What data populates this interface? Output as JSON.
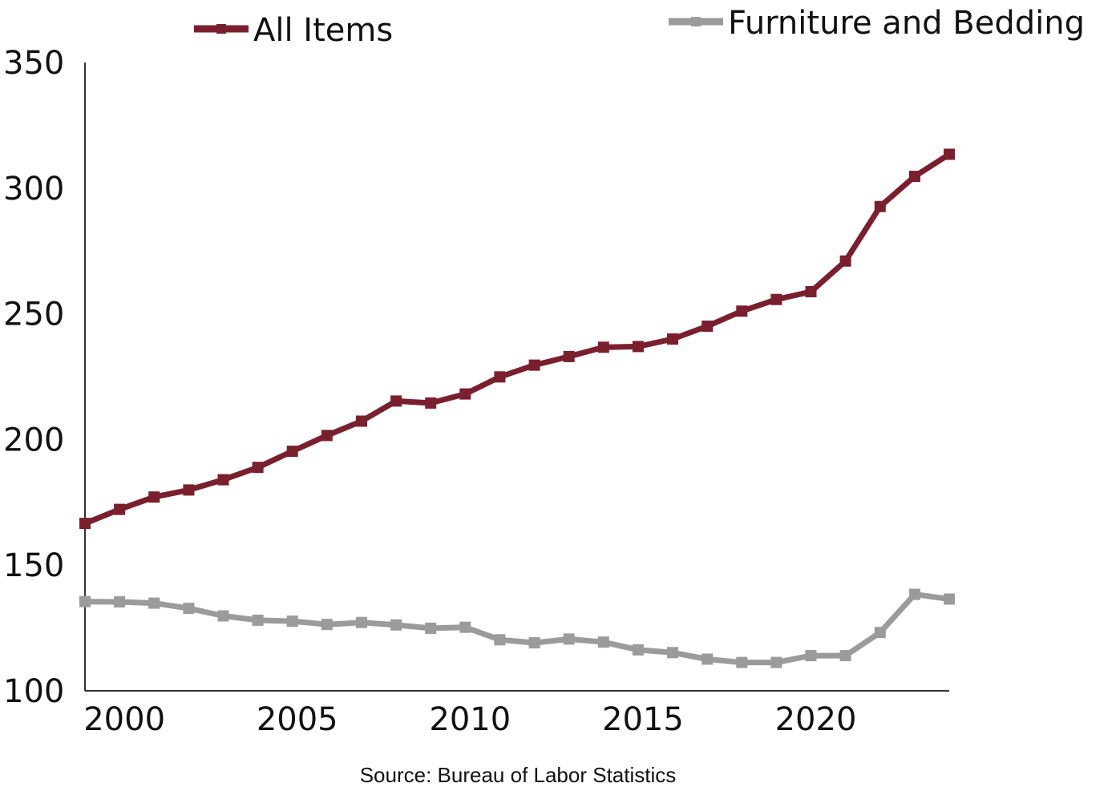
{
  "chart_data": {
    "type": "line",
    "title": "",
    "xlabel": "",
    "ylabel": "",
    "source": "Source: Bureau of Labor Statistics",
    "x": [
      1999,
      2000,
      2001,
      2002,
      2003,
      2004,
      2005,
      2006,
      2007,
      2008,
      2009,
      2010,
      2011,
      2012,
      2013,
      2014,
      2015,
      2016,
      2017,
      2018,
      2019,
      2020,
      2021,
      2022,
      2023,
      2024
    ],
    "xlim": [
      1999,
      2024
    ],
    "ylim": [
      100,
      350
    ],
    "xticks": [
      "2000",
      "2005",
      "2010",
      "2015",
      "2020"
    ],
    "xtick_values": [
      2000,
      2005,
      2010,
      2015,
      2020
    ],
    "yticks": [
      "100",
      "150",
      "200",
      "250",
      "300",
      "350"
    ],
    "ytick_values": [
      100,
      150,
      200,
      250,
      300,
      350
    ],
    "grid": false,
    "legend_placement": "top",
    "series": [
      {
        "name": "All Items",
        "color": "#7a1f2e",
        "values": [
          166.6,
          172.2,
          177.1,
          179.9,
          184.0,
          188.9,
          195.3,
          201.6,
          207.3,
          215.3,
          214.5,
          218.1,
          224.9,
          229.6,
          233.0,
          236.7,
          237.0,
          240.0,
          245.1,
          251.1,
          255.7,
          258.8,
          271.0,
          292.7,
          304.7,
          313.5
        ]
      },
      {
        "name": "Furniture and Bedding",
        "color": "#9b9b9b",
        "values": [
          135.5,
          135.4,
          134.9,
          132.8,
          129.8,
          128.1,
          127.7,
          126.4,
          127.2,
          126.2,
          124.9,
          125.3,
          120.3,
          119.1,
          120.6,
          119.4,
          116.3,
          115.2,
          112.6,
          111.3,
          111.3,
          114.0,
          114.0,
          123.2,
          138.4,
          136.5
        ]
      }
    ]
  }
}
